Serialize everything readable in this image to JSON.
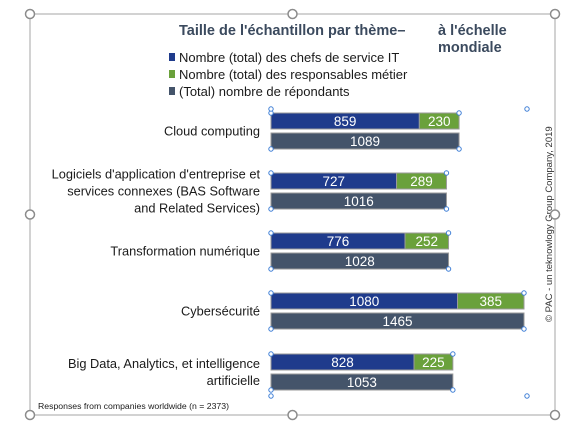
{
  "chart_data": {
    "type": "bar",
    "orientation": "horizontal",
    "title": {
      "line1": "Taille de l'échantillon par thème–",
      "line2a": "à l'échelle",
      "line2b": "mondiale"
    },
    "legend": {
      "placement": "top",
      "entries": [
        {
          "key": "it",
          "label": "Nombre (total) des chefs de service IT",
          "color": "#1f3b8c"
        },
        {
          "key": "bus",
          "label": "Nombre (total) des responsables métier",
          "color": "#6aa13b"
        },
        {
          "key": "tot",
          "label": "(Total) nombre de répondants",
          "color": "#44546a"
        }
      ]
    },
    "categories": [
      {
        "lines": [
          "Cloud computing"
        ]
      },
      {
        "lines": [
          "Logiciels d'application d'entreprise et",
          "services connexes (BAS Software",
          "and Related Services)"
        ]
      },
      {
        "lines": [
          "Transformation numérique"
        ]
      },
      {
        "lines": [
          "Cybersécurité"
        ]
      },
      {
        "lines": [
          "Big Data, Analytics, et intelligence",
          "artificielle"
        ]
      }
    ],
    "series": [
      {
        "key": "it",
        "stack": "top",
        "values": [
          859,
          727,
          776,
          1080,
          828
        ]
      },
      {
        "key": "bus",
        "stack": "top",
        "values": [
          230,
          289,
          252,
          385,
          225
        ]
      },
      {
        "key": "tot",
        "stack": "bottom",
        "values": [
          1089,
          1016,
          1028,
          1465,
          1053
        ]
      }
    ],
    "grid": false,
    "data_labels": true
  },
  "footnote": "Responses from companies worldwide (n = 2373)",
  "copyright": "© PAC - un teknowlogy Group Company, 2019",
  "colors": {
    "title": "#3b4a5e",
    "bar_outline": "#9a9a9a",
    "selection_frame": "#a6a6a6",
    "handle_fill": "#ffffff",
    "handle_stroke": "#8c8c8c",
    "anchor": "#3f7fd6"
  }
}
